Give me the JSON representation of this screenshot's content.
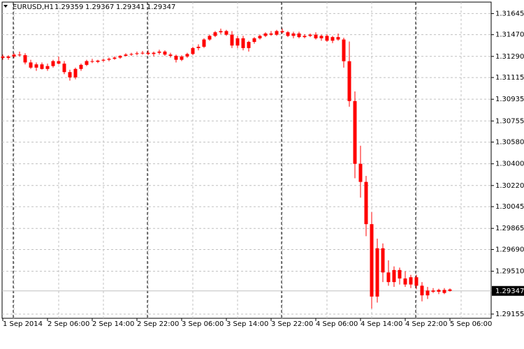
{
  "chart_data": {
    "type": "candlestick",
    "title": "EURUSD,H1",
    "header_values": [
      "chart_data.open.80",
      "chart_data.high.80",
      "chart_data.low.80",
      "chart_data.close.80"
    ],
    "categories": [
      "1 Sep 2014",
      null,
      null,
      null,
      null,
      null,
      null,
      null,
      "2 Sep 06:00",
      null,
      null,
      null,
      null,
      null,
      null,
      null,
      "2 Sep 14:00",
      null,
      null,
      null,
      null,
      null,
      null,
      null,
      "2 Sep 22:00",
      null,
      null,
      null,
      null,
      null,
      null,
      null,
      "3 Sep 06:00",
      null,
      null,
      null,
      null,
      null,
      null,
      null,
      "3 Sep 14:00",
      null,
      null,
      null,
      null,
      null,
      null,
      null,
      "3 Sep 22:00",
      null,
      null,
      null,
      null,
      null,
      null,
      null,
      "4 Sep 06:00",
      null,
      null,
      null,
      null,
      null,
      null,
      null,
      "4 Sep 14:00",
      null,
      null,
      null,
      null,
      null,
      null,
      null,
      "4 Sep 22:00",
      null,
      null,
      null,
      null,
      null,
      null,
      null,
      "5 Sep 06:00"
    ],
    "open": [
      1.31289,
      1.31278,
      1.31289,
      1.31305,
      1.313,
      1.3124,
      1.31197,
      1.31224,
      1.31186,
      1.3121,
      1.31251,
      1.3123,
      1.3116,
      1.31116,
      1.31186,
      1.3122,
      1.31251,
      1.31245,
      1.31255,
      1.31262,
      1.3127,
      1.3128,
      1.31295,
      1.31305,
      1.3131,
      1.31316,
      1.3132,
      1.3131,
      1.3132,
      1.3133,
      1.31305,
      1.31295,
      1.31262,
      1.31289,
      1.3131,
      1.31359,
      1.3137,
      1.3143,
      1.3146,
      1.3149,
      1.315,
      1.3147,
      1.3138,
      1.3144,
      1.31359,
      1.3141,
      1.3144,
      1.3146,
      1.3148,
      1.3147,
      1.315,
      1.3149,
      1.3146,
      1.3148,
      1.3145,
      1.3146,
      1.3147,
      1.3144,
      1.3146,
      1.3142,
      1.3145,
      1.3143,
      1.3125,
      1.3092,
      1.304,
      1.3025,
      1.299,
      1.293,
      1.297,
      1.295,
      1.2942,
      1.2952,
      1.2945,
      1.294,
      1.2946,
      1.2939,
      1.2931,
      1.2935,
      1.2934,
      1.29355,
      1.29359
    ],
    "high": [
      1.31305,
      1.313,
      1.31316,
      1.3133,
      1.31316,
      1.31262,
      1.3124,
      1.3124,
      1.3123,
      1.31262,
      1.31289,
      1.31251,
      1.3118,
      1.31197,
      1.3123,
      1.31262,
      1.3127,
      1.31262,
      1.3127,
      1.3128,
      1.3129,
      1.313,
      1.31316,
      1.3132,
      1.3133,
      1.31335,
      1.3134,
      1.3133,
      1.31345,
      1.3134,
      1.3132,
      1.31305,
      1.313,
      1.3132,
      1.3137,
      1.3139,
      1.3144,
      1.3147,
      1.315,
      1.3152,
      1.3151,
      1.315,
      1.3146,
      1.3146,
      1.3142,
      1.3145,
      1.3147,
      1.3149,
      1.315,
      1.3151,
      1.3152,
      1.315,
      1.31494,
      1.31494,
      1.31475,
      1.3148,
      1.3149,
      1.3147,
      1.31475,
      1.3146,
      1.3148,
      1.31445,
      1.31413,
      1.31,
      1.3055,
      1.303,
      1.3,
      1.2978,
      1.2974,
      1.296,
      1.2955,
      1.2954,
      1.2951,
      1.2948,
      1.2948,
      1.2942,
      1.2938,
      1.2937,
      1.29365,
      1.2937,
      1.29367
    ],
    "low": [
      1.31262,
      1.31262,
      1.31278,
      1.31289,
      1.31224,
      1.31186,
      1.3117,
      1.31181,
      1.3117,
      1.31197,
      1.31224,
      1.31143,
      1.31089,
      1.311,
      1.3117,
      1.3121,
      1.31235,
      1.31235,
      1.31245,
      1.3125,
      1.31262,
      1.3127,
      1.31289,
      1.31295,
      1.313,
      1.31305,
      1.313,
      1.3129,
      1.31305,
      1.31295,
      1.3128,
      1.3124,
      1.31251,
      1.31278,
      1.313,
      1.3134,
      1.3136,
      1.3142,
      1.3145,
      1.31475,
      1.3146,
      1.31359,
      1.31359,
      1.3134,
      1.3133,
      1.31395,
      1.3143,
      1.3145,
      1.3146,
      1.3146,
      1.3148,
      1.3145,
      1.3144,
      1.3144,
      1.3144,
      1.3145,
      1.3143,
      1.3142,
      1.3141,
      1.314,
      1.3142,
      1.31197,
      1.30873,
      1.3028,
      1.3012,
      1.298,
      1.292,
      1.2925,
      1.2942,
      1.2939,
      1.2938,
      1.294,
      1.2938,
      1.2937,
      1.2936,
      1.2926,
      1.2928,
      1.2933,
      1.2932,
      1.2932,
      1.29341
    ],
    "close": [
      1.31278,
      1.31289,
      1.31305,
      1.313,
      1.3124,
      1.31197,
      1.31224,
      1.31186,
      1.3121,
      1.31251,
      1.3123,
      1.3116,
      1.31116,
      1.31186,
      1.3122,
      1.31251,
      1.31245,
      1.31255,
      1.31262,
      1.3127,
      1.3128,
      1.31295,
      1.31305,
      1.3131,
      1.31316,
      1.3132,
      1.3131,
      1.3132,
      1.3133,
      1.31305,
      1.31295,
      1.31262,
      1.31289,
      1.3131,
      1.31359,
      1.3137,
      1.3143,
      1.3146,
      1.3149,
      1.315,
      1.3147,
      1.3138,
      1.3144,
      1.31359,
      1.3141,
      1.3144,
      1.3146,
      1.3148,
      1.3147,
      1.315,
      1.3149,
      1.3146,
      1.3148,
      1.3145,
      1.3146,
      1.3147,
      1.3144,
      1.3146,
      1.3142,
      1.3145,
      1.3143,
      1.3125,
      1.3092,
      1.304,
      1.3025,
      1.299,
      1.293,
      1.297,
      1.295,
      1.2942,
      1.2952,
      1.2945,
      1.294,
      1.2946,
      1.2939,
      1.2931,
      1.2935,
      1.2934,
      1.29355,
      1.2933,
      1.29347
    ],
    "color": "#ff0000",
    "ylim": [
      1.2912,
      1.3174
    ],
    "yticks": [
      1.31645,
      {
        "value": 1.3147,
        "label": "1.31470"
      },
      {
        "value": 1.3129,
        "label": "1.31290"
      },
      1.31115,
      1.30935,
      1.30755,
      {
        "value": 1.3058,
        "label": "1.30580"
      },
      {
        "value": 1.304,
        "label": "1.30400"
      },
      {
        "value": 1.3022,
        "label": "1.30220"
      },
      1.30045,
      1.29865,
      {
        "value": 1.2969,
        "label": "1.29690"
      },
      {
        "value": 1.2951,
        "label": "1.29510"
      },
      1.29155
    ],
    "grid": true
  }
}
